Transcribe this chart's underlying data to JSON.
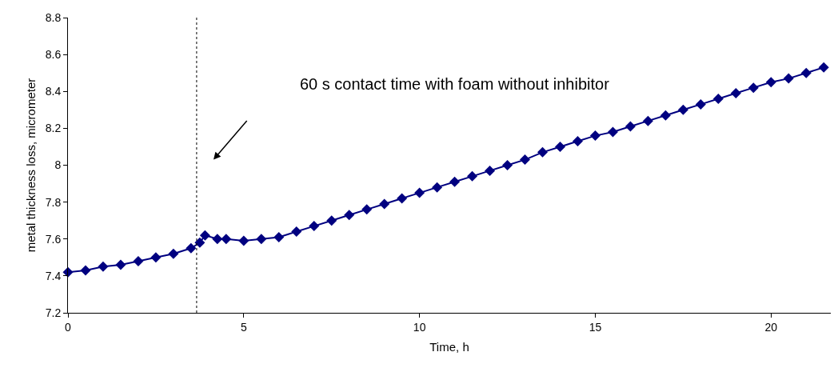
{
  "chart_data": {
    "type": "line",
    "xlabel": "Time, h",
    "ylabel": "metal thickness loss, micrometer",
    "annotations": [
      "60 s contact time with foam without inhibitor"
    ],
    "x": [
      0,
      0.5,
      1,
      1.5,
      2,
      2.5,
      3,
      3.5,
      3.75,
      3.9,
      4.25,
      4.5,
      5,
      5.5,
      6,
      6.5,
      7,
      7.5,
      8,
      8.5,
      9,
      9.5,
      10,
      10.5,
      11,
      11.5,
      12,
      12.5,
      13,
      13.5,
      14,
      14.5,
      15,
      15.5,
      16,
      16.5,
      17,
      17.5,
      18,
      18.5,
      19,
      19.5,
      20,
      20.5,
      21,
      21.5
    ],
    "series": [
      {
        "color": "#000080",
        "values": [
          7.42,
          7.43,
          7.45,
          7.46,
          7.48,
          7.5,
          7.52,
          7.55,
          7.58,
          7.62,
          7.6,
          7.6,
          7.59,
          7.6,
          7.61,
          7.64,
          7.67,
          7.7,
          7.73,
          7.76,
          7.79,
          7.82,
          7.85,
          7.88,
          7.91,
          7.94,
          7.97,
          8.0,
          8.03,
          8.07,
          8.1,
          8.13,
          8.16,
          8.18,
          8.21,
          8.24,
          8.27,
          8.3,
          8.33,
          8.36,
          8.39,
          8.42,
          8.45,
          8.47,
          8.5,
          8.53
        ]
      }
    ],
    "xlim": [
      0,
      21.7
    ],
    "xticks": [
      0,
      5,
      10,
      15,
      20
    ],
    "ylim": [
      7.2,
      8.8
    ],
    "yticks": [
      7.2,
      7.4,
      7.6,
      7.8,
      8,
      8.2,
      8.4,
      8.6,
      8.8
    ],
    "ref_lines": [
      {
        "axis": "x",
        "value": 3.66,
        "color": "#000000",
        "line_style": "dotted"
      }
    ],
    "grid": false,
    "legend": false,
    "marker": "diamond",
    "line_style": "solid"
  }
}
